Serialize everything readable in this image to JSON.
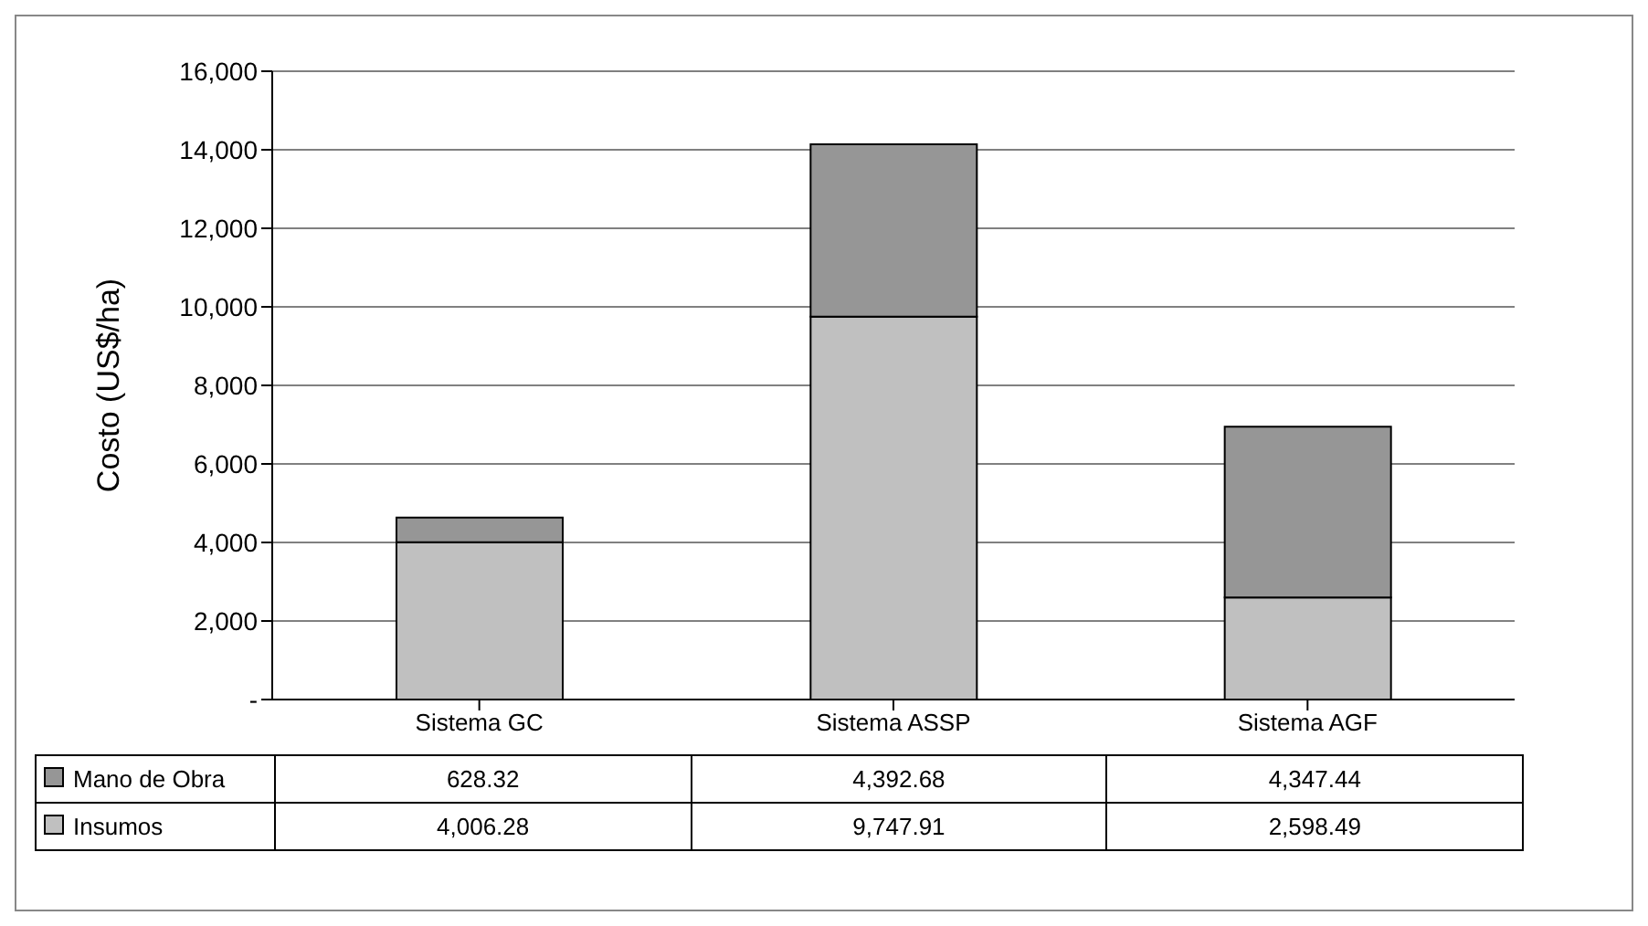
{
  "chart_data": {
    "type": "bar",
    "stacked": true,
    "ylabel": "Costo (US$/ha)",
    "categories": [
      "Sistema GC",
      "Sistema ASSP",
      "Sistema AGF"
    ],
    "series": [
      {
        "name": "Insumos",
        "color": "#c0c0c0",
        "values": [
          4006.28,
          9747.91,
          2598.49
        ],
        "value_labels": [
          "4,006.28",
          "9,747.91",
          "2,598.49"
        ]
      },
      {
        "name": "Mano de Obra",
        "color": "#969696",
        "values": [
          628.32,
          4392.68,
          4347.44
        ],
        "value_labels": [
          "628.32",
          "4,392.68",
          "4,347.44"
        ]
      }
    ],
    "ylim": [
      0,
      16000
    ],
    "yticks": [
      {
        "value": 0,
        "label": "-"
      },
      {
        "value": 2000,
        "label": "2,000"
      },
      {
        "value": 4000,
        "label": "4,000"
      },
      {
        "value": 6000,
        "label": "6,000"
      },
      {
        "value": 8000,
        "label": "8,000"
      },
      {
        "value": 10000,
        "label": "10,000"
      },
      {
        "value": 12000,
        "label": "12,000"
      },
      {
        "value": 14000,
        "label": "14,000"
      },
      {
        "value": 16000,
        "label": "16,000"
      }
    ],
    "grid": "y",
    "legend": "bottom left"
  }
}
